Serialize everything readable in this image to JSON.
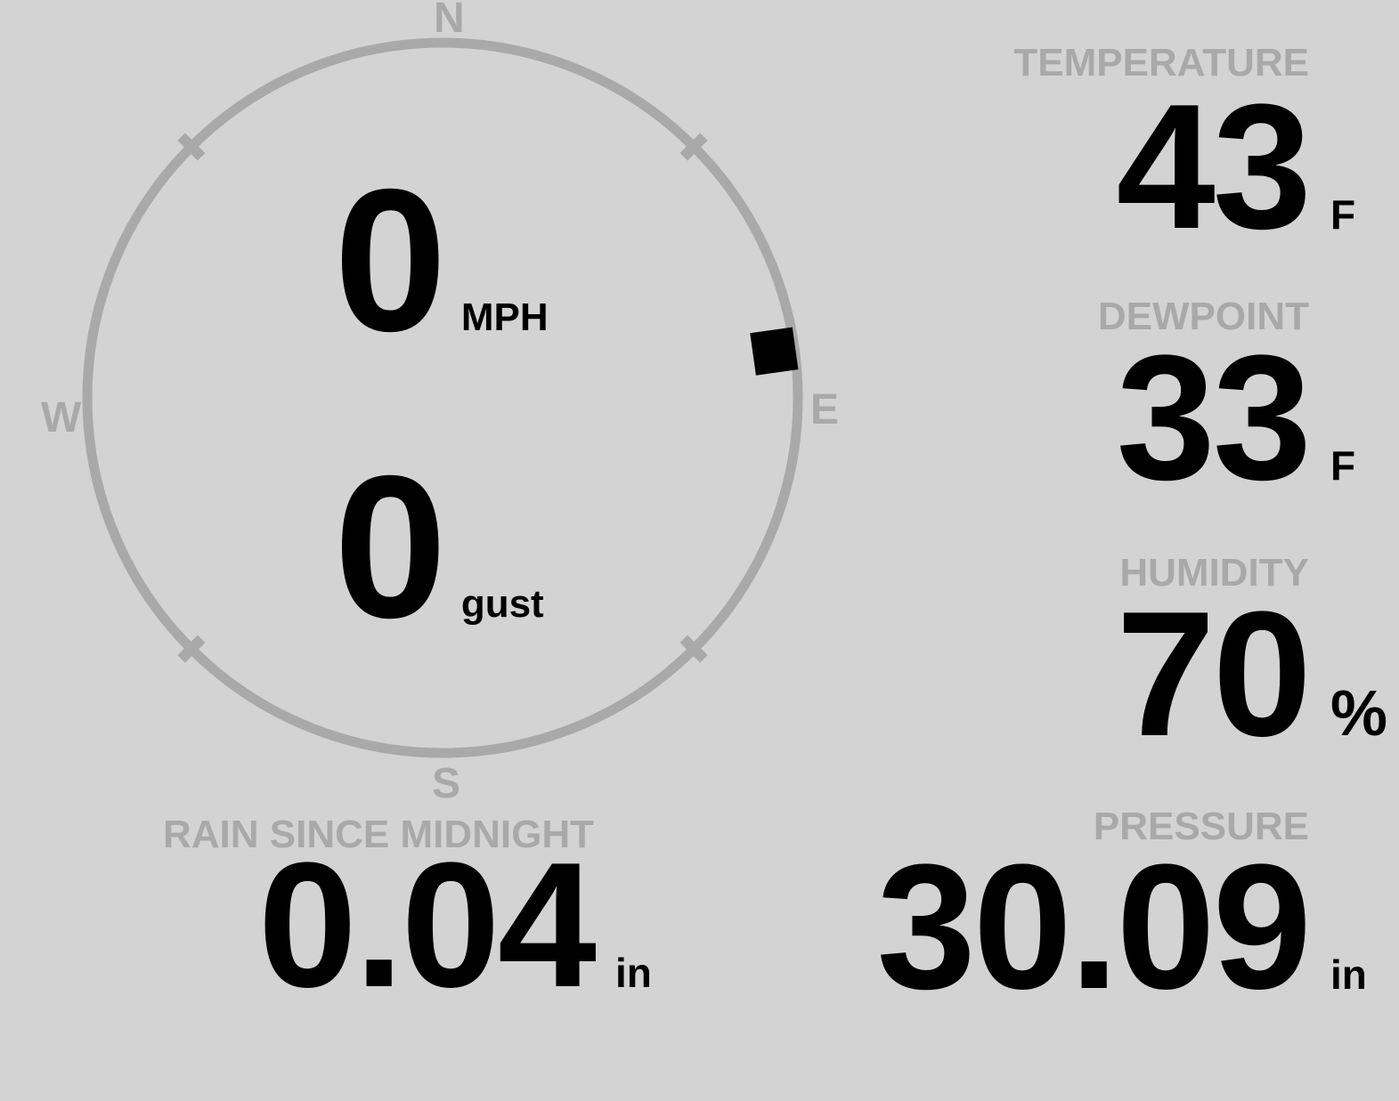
{
  "colors": {
    "background": "#d3d3d3",
    "muted": "#a9a9a9",
    "value_text": "#000000"
  },
  "wind": {
    "speed": {
      "value": "0",
      "unit": "MPH"
    },
    "gust": {
      "value": "0",
      "unit": "gust"
    },
    "compass": {
      "north": "N",
      "east": "E",
      "south": "S",
      "west": "W",
      "direction_degrees": 82
    }
  },
  "metrics": {
    "temperature": {
      "label": "TEMPERATURE",
      "value": "43",
      "unit": "F"
    },
    "dewpoint": {
      "label": "DEWPOINT",
      "value": "33",
      "unit": "F"
    },
    "humidity": {
      "label": "HUMIDITY",
      "value": "70",
      "unit": "%"
    },
    "rain": {
      "label": "RAIN SINCE MIDNIGHT",
      "value": "0.04",
      "unit": "in"
    },
    "pressure": {
      "label": "PRESSURE",
      "value": "30.09",
      "unit": "in"
    }
  }
}
